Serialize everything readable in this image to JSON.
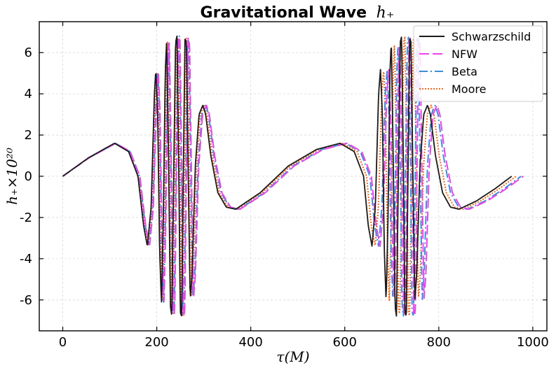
{
  "chart_data": {
    "type": "line",
    "title": "Gravitational Wave h₊",
    "title_text": "Gravitational Wave",
    "title_math": "h₊",
    "xlabel": "τ(M)",
    "ylabel": "h₊×10²⁰",
    "xlim": [
      -50,
      1030
    ],
    "ylim": [
      -7.5,
      7.5
    ],
    "xticks": [
      0,
      200,
      400,
      600,
      800,
      1000
    ],
    "xtick_labels": [
      "0",
      "200",
      "400",
      "600",
      "800",
      "1000"
    ],
    "yticks": [
      -6,
      -4,
      -2,
      0,
      2,
      4,
      6
    ],
    "ytick_labels": [
      "-6",
      "-4",
      "-2",
      "0",
      "2",
      "4",
      "6"
    ],
    "grid": true,
    "legend_position": "top-right",
    "series": [
      {
        "name": "Schwarzschild",
        "color": "#1a1a1a",
        "dash": "solid",
        "end_x": 955,
        "stretch": 1.0
      },
      {
        "name": "NFW",
        "color": "#ee44ee",
        "dash": "long-dash",
        "end_x": 980,
        "stretch": 1.026
      },
      {
        "name": "Beta",
        "color": "#3a8fd8",
        "dash": "dash-dot",
        "end_x": 975,
        "stretch": 1.021
      },
      {
        "name": "Moore",
        "color": "#ee6a1a",
        "dash": "dotted",
        "end_x": 965,
        "stretch": 1.01
      }
    ],
    "reference_waveform": [
      [
        0,
        0
      ],
      [
        55,
        0.9
      ],
      [
        110,
        1.6
      ],
      [
        140,
        1.2
      ],
      [
        160,
        0.0
      ],
      [
        172,
        -2.4
      ],
      [
        180,
        -3.4
      ],
      [
        188,
        -1.5
      ],
      [
        195,
        4.0
      ],
      [
        198,
        5.2
      ],
      [
        202,
        3.0
      ],
      [
        206,
        -3.5
      ],
      [
        210,
        -6.2
      ],
      [
        214,
        -2.0
      ],
      [
        218,
        5.0
      ],
      [
        221,
        6.6
      ],
      [
        225,
        1.0
      ],
      [
        229,
        -6.3
      ],
      [
        232,
        -6.8
      ],
      [
        236,
        0.0
      ],
      [
        240,
        6.5
      ],
      [
        243,
        6.8
      ],
      [
        247,
        0.0
      ],
      [
        250,
        -6.6
      ],
      [
        253,
        -6.8
      ],
      [
        257,
        1.0
      ],
      [
        260,
        6.7
      ],
      [
        263,
        6.5
      ],
      [
        267,
        0.0
      ],
      [
        271,
        -6.0
      ],
      [
        275,
        -4.8
      ],
      [
        282,
        0.5
      ],
      [
        290,
        3.0
      ],
      [
        298,
        3.45
      ],
      [
        304,
        3.0
      ],
      [
        315,
        1.0
      ],
      [
        330,
        -0.8
      ],
      [
        348,
        -1.5
      ],
      [
        368,
        -1.6
      ],
      [
        420,
        -0.8
      ],
      [
        480,
        0.5
      ],
      [
        540,
        1.3
      ],
      [
        590,
        1.6
      ],
      [
        620,
        1.2
      ],
      [
        640,
        0.0
      ],
      [
        650,
        -2.4
      ],
      [
        658,
        -3.4
      ],
      [
        665,
        -1.5
      ],
      [
        672,
        4.0
      ],
      [
        676,
        5.2
      ],
      [
        680,
        3.0
      ],
      [
        684,
        -3.5
      ],
      [
        688,
        -6.1
      ],
      [
        692,
        -2.0
      ],
      [
        696,
        5.0
      ],
      [
        699,
        6.6
      ],
      [
        703,
        1.0
      ],
      [
        707,
        -6.3
      ],
      [
        710,
        -6.8
      ],
      [
        714,
        0.0
      ],
      [
        718,
        6.5
      ],
      [
        721,
        6.8
      ],
      [
        725,
        0.0
      ],
      [
        728,
        -6.6
      ],
      [
        731,
        -6.8
      ],
      [
        735,
        1.0
      ],
      [
        738,
        6.7
      ],
      [
        741,
        6.5
      ],
      [
        745,
        0.0
      ],
      [
        749,
        -6.0
      ],
      [
        753,
        -4.8
      ],
      [
        760,
        0.5
      ],
      [
        768,
        3.0
      ],
      [
        776,
        3.45
      ],
      [
        782,
        3.0
      ],
      [
        793,
        1.0
      ],
      [
        808,
        -0.8
      ],
      [
        825,
        -1.5
      ],
      [
        843,
        -1.6
      ],
      [
        880,
        -1.2
      ],
      [
        920,
        -0.6
      ],
      [
        955,
        0.0
      ]
    ]
  }
}
